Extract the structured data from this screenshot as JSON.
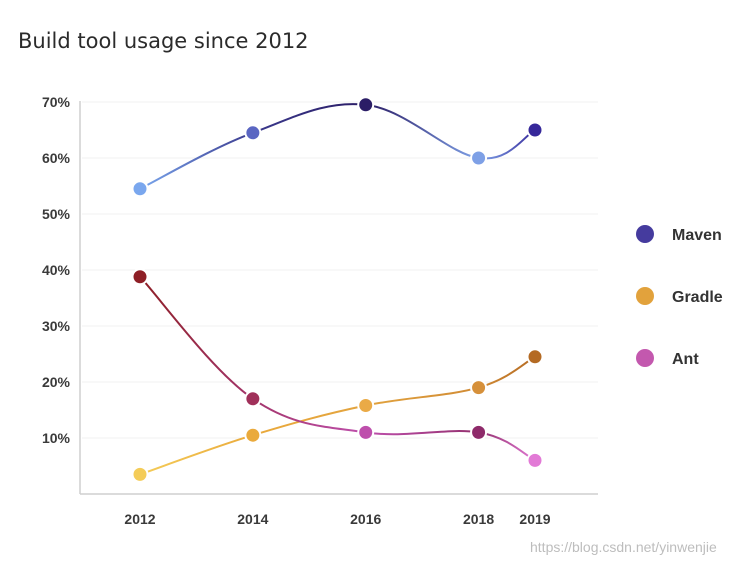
{
  "chart_data": {
    "type": "line",
    "title": "Build tool usage since 2012",
    "x": [
      2012,
      2014,
      2016,
      2018,
      2019
    ],
    "x_tick_labels": [
      "2012",
      "2014",
      "2016",
      "2018",
      "2019"
    ],
    "y_tick_labels": [
      "70%",
      "60%",
      "50%",
      "40%",
      "30%",
      "20%",
      "10%"
    ],
    "y_ticks": [
      70,
      60,
      50,
      40,
      30,
      20,
      10
    ],
    "ylim": [
      0,
      72
    ],
    "grid": true,
    "legend_position": "right",
    "series": [
      {
        "name": "Maven",
        "values": [
          54.5,
          64.5,
          69.5,
          60,
          65
        ],
        "legend_color": "#453b9e",
        "point_colors": [
          "#7aa7ee",
          "#5a66c2",
          "#2b1d66",
          "#7ea0e6",
          "#36289a"
        ],
        "line_colors": [
          "#7aa7ee",
          "#3b3a8e",
          "#2b1d66",
          "#7ea0e6",
          "#36289a"
        ]
      },
      {
        "name": "Gradle",
        "values": [
          3.5,
          10.5,
          15.8,
          19,
          24.5
        ],
        "legend_color": "#e2a23c",
        "point_colors": [
          "#f4cc58",
          "#eaaa3c",
          "#eaaa46",
          "#d6903a",
          "#b46a23"
        ],
        "line_colors": [
          "#f4cc58",
          "#eaaa3c",
          "#e2a33e",
          "#d08a34",
          "#b46a23"
        ]
      },
      {
        "name": "Ant",
        "values": [
          38.8,
          17,
          11,
          11,
          6
        ],
        "legend_color": "#c358ae",
        "point_colors": [
          "#8e1f26",
          "#a0305a",
          "#be4fac",
          "#8e2a6a",
          "#e27ad6"
        ],
        "line_colors": [
          "#8e1f26",
          "#a3356a",
          "#be4fac",
          "#93306e",
          "#e27ad6"
        ]
      }
    ]
  },
  "watermark": "https://blog.csdn.net/yinwenjie"
}
